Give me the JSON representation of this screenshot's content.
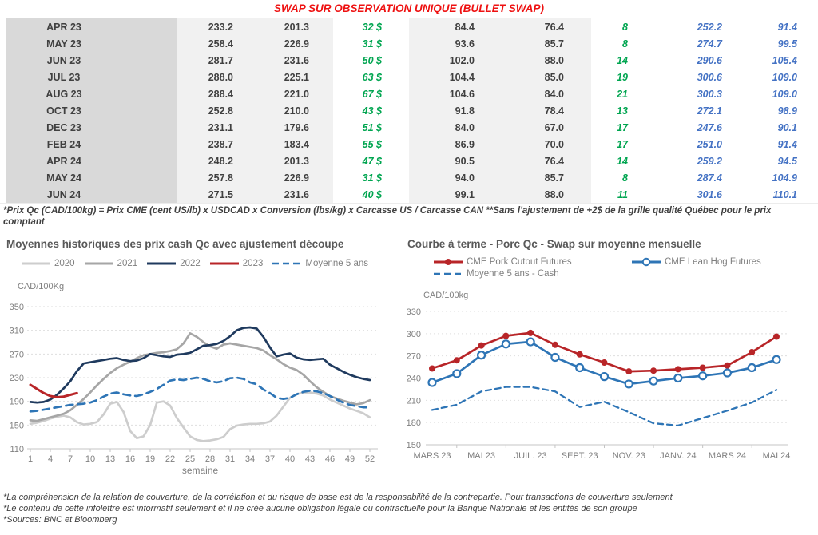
{
  "page_title": "SWAP SUR OBSERVATION UNIQUE (BULLET SWAP)",
  "table": {
    "rows": [
      {
        "month": "APR 23",
        "values": [
          "233.2",
          "201.3",
          "32 $",
          "84.4",
          "76.4",
          "8",
          "252.2",
          "91.4"
        ]
      },
      {
        "month": "MAY 23",
        "values": [
          "258.4",
          "226.9",
          "31 $",
          "93.6",
          "85.7",
          "8",
          "274.7",
          "99.5"
        ]
      },
      {
        "month": "JUN 23",
        "values": [
          "281.7",
          "231.6",
          "50 $",
          "102.0",
          "88.0",
          "14",
          "290.6",
          "105.4"
        ]
      },
      {
        "month": "JUL 23",
        "values": [
          "288.0",
          "225.1",
          "63 $",
          "104.4",
          "85.0",
          "19",
          "300.6",
          "109.0"
        ]
      },
      {
        "month": "AUG 23",
        "values": [
          "288.4",
          "221.0",
          "67 $",
          "104.6",
          "84.0",
          "21",
          "300.3",
          "109.0"
        ]
      },
      {
        "month": "OCT 23",
        "values": [
          "252.8",
          "210.0",
          "43 $",
          "91.8",
          "78.4",
          "13",
          "272.1",
          "98.9"
        ]
      },
      {
        "month": "DEC 23",
        "values": [
          "231.1",
          "179.6",
          "51 $",
          "84.0",
          "67.0",
          "17",
          "247.6",
          "90.1"
        ]
      },
      {
        "month": "FEB 24",
        "values": [
          "238.7",
          "183.4",
          "55 $",
          "86.9",
          "70.0",
          "17",
          "251.0",
          "91.4"
        ]
      },
      {
        "month": "APR 24",
        "values": [
          "248.2",
          "201.3",
          "47 $",
          "90.5",
          "76.4",
          "14",
          "259.2",
          "94.5"
        ]
      },
      {
        "month": "MAY 24",
        "values": [
          "257.8",
          "226.9",
          "31 $",
          "94.0",
          "85.7",
          "8",
          "287.4",
          "104.9"
        ]
      },
      {
        "month": "JUN 24",
        "values": [
          "271.5",
          "231.6",
          "40 $",
          "99.1",
          "88.0",
          "11",
          "301.6",
          "110.1"
        ]
      }
    ]
  },
  "table_footnote": "*Prix Qc (CAD/100kg) = Prix CME (cent US/lb) x USDCAD x Conversion (lbs/kg) x Carcasse US / Carcasse CAN **Sans l'ajustement de +2$ de la grille qualité Québec pour le prix comptant",
  "footer_lines": [
    "*La compréhension de la relation de couverture, de la corrélation et du risque de base est de la responsabilité de la contrepartie. Pour transactions de couverture seulement",
    "*Le contenu de cette infolettre est informatif seulement et il ne crée aucune obligation légale ou contractuelle pour la Banque Nationale et les entités de son groupe",
    "*Sources: BNC et Bloomberg"
  ],
  "colors": {
    "title_red": "#ee1111",
    "table_green": "#00a550",
    "table_blue": "#4472c4",
    "navy": "#1f3a5e",
    "steel_blue": "#2e75b6",
    "series_red": "#b82528",
    "gray_2021": "#a6a6a6",
    "light_gray_2020": "#cdcdcd"
  },
  "chart_data": [
    {
      "type": "line",
      "title": "Moyennes historiques des prix cash Qc avec ajustement découpe",
      "ylabel": "CAD/100Kg",
      "xlabel": "semaine",
      "ylim": [
        110,
        350
      ],
      "yticks": [
        110,
        150,
        190,
        230,
        270,
        310,
        350
      ],
      "xticks": [
        1,
        4,
        7,
        10,
        13,
        16,
        19,
        22,
        25,
        28,
        31,
        34,
        37,
        40,
        43,
        46,
        49,
        52
      ],
      "x_range": [
        1,
        52
      ],
      "grid": "horizontal-dashed",
      "legend_position": "top",
      "series": [
        {
          "name": "2020",
          "color": "#cdcdcd",
          "dash": "none",
          "x_start": 1,
          "values": [
            152,
            154,
            157,
            161,
            164,
            166,
            163,
            155,
            151,
            152,
            155,
            168,
            186,
            189,
            172,
            140,
            128,
            131,
            150,
            188,
            190,
            183,
            162,
            146,
            131,
            125,
            123,
            124,
            126,
            130,
            143,
            149,
            151,
            152,
            152,
            153,
            156,
            166,
            181,
            196,
            202,
            205,
            205,
            203,
            200,
            193,
            188,
            183,
            178,
            174,
            170,
            163
          ]
        },
        {
          "name": "2021",
          "color": "#a6a6a6",
          "dash": "none",
          "x_start": 1,
          "values": [
            158,
            157,
            160,
            163,
            166,
            169,
            175,
            184,
            194,
            205,
            217,
            228,
            238,
            246,
            252,
            257,
            263,
            268,
            270,
            272,
            273,
            275,
            278,
            288,
            305,
            299,
            290,
            283,
            279,
            286,
            288,
            286,
            284,
            282,
            280,
            276,
            268,
            261,
            253,
            247,
            243,
            235,
            224,
            214,
            206,
            199,
            195,
            191,
            188,
            185,
            187,
            192
          ]
        },
        {
          "name": "2022",
          "color": "#1f3a5e",
          "dash": "none",
          "x_start": 1,
          "values": [
            189,
            188,
            189,
            193,
            201,
            212,
            224,
            241,
            254,
            256,
            258,
            260,
            262,
            263,
            260,
            258,
            259,
            263,
            270,
            268,
            266,
            265,
            269,
            270,
            272,
            278,
            284,
            285,
            287,
            292,
            300,
            310,
            314,
            315,
            313,
            299,
            281,
            266,
            269,
            271,
            264,
            261,
            260,
            261,
            262,
            252,
            246,
            240,
            235,
            231,
            228,
            226
          ]
        },
        {
          "name": "2023",
          "color": "#b82528",
          "dash": "none",
          "x_start": 1,
          "values": [
            218,
            211,
            204,
            199,
            197,
            198,
            201,
            204
          ]
        },
        {
          "name": "Moyenne 5 ans",
          "color": "#2e75b6",
          "dash": "dashed",
          "x_start": 1,
          "values": [
            173,
            174,
            176,
            178,
            180,
            182,
            184,
            185,
            186,
            188,
            192,
            198,
            203,
            205,
            202,
            200,
            199,
            202,
            206,
            211,
            218,
            225,
            227,
            226,
            228,
            230,
            228,
            224,
            222,
            224,
            229,
            230,
            228,
            222,
            219,
            210,
            204,
            196,
            194,
            196,
            202,
            206,
            208,
            207,
            204,
            199,
            193,
            188,
            184,
            182,
            180,
            180
          ]
        }
      ]
    },
    {
      "type": "line",
      "title": "Courbe à terme - Porc Qc - Swap sur moyenne mensuelle",
      "ylabel": "CAD/100kg",
      "ylim": [
        150,
        330
      ],
      "yticks": [
        150,
        180,
        210,
        240,
        270,
        300,
        330
      ],
      "n_points": 15,
      "x_label_indices": [
        0,
        2,
        4,
        6,
        8,
        10,
        12,
        14
      ],
      "x_labels_visible": [
        "MARS 23",
        "MAI 23",
        "JUIL. 23",
        "SEPT. 23",
        "NOV. 23",
        "JANV. 24",
        "MARS 24",
        "MAI 24"
      ],
      "grid": "horizontal-dashed",
      "legend_position": "top",
      "series": [
        {
          "name": "CME Pork Cutout Futures",
          "color": "#b82528",
          "dash": "none",
          "marker": "filled-circle",
          "values": [
            253,
            264,
            284,
            297,
            301,
            285,
            272,
            261,
            249,
            250,
            252,
            254,
            257,
            275,
            296
          ]
        },
        {
          "name": "CME Lean Hog Futures",
          "color": "#2e75b6",
          "dash": "none",
          "marker": "open-circle",
          "values": [
            234,
            246,
            271,
            286,
            289,
            268,
            254,
            242,
            232,
            236,
            240,
            243,
            247,
            254,
            265
          ]
        },
        {
          "name": "Moyenne 5 ans - Cash",
          "color": "#2e75b6",
          "dash": "dashed",
          "marker": "none",
          "values": [
            197,
            204,
            222,
            228,
            228,
            222,
            201,
            208,
            194,
            179,
            176,
            186,
            196,
            207,
            224
          ]
        }
      ]
    }
  ]
}
